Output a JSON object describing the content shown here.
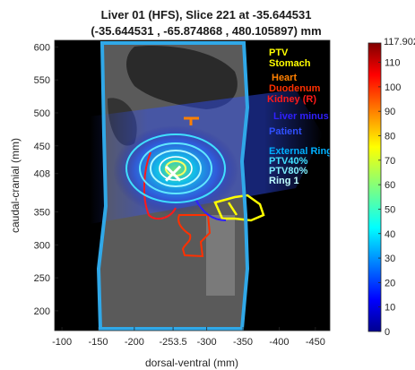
{
  "chart_data": {
    "type": "heatmap",
    "title": "Liver 01 (HFS), Slice 221 at -35.644531",
    "subtitle": "(-35.644531 , -65.874868 , 480.105897) mm",
    "xlabel": "dorsal-ventral (mm)",
    "ylabel": "caudal-cranial (mm)",
    "xlim": [
      -90,
      -470
    ],
    "ylim": [
      170,
      610
    ],
    "x_ticks": [
      {
        "value": -100,
        "label": "-100"
      },
      {
        "value": -150,
        "label": "-150"
      },
      {
        "value": -200,
        "label": "-200"
      },
      {
        "value": -253.5,
        "label": "-253.5"
      },
      {
        "value": -300,
        "label": "-300"
      },
      {
        "value": -350,
        "label": "-350"
      },
      {
        "value": -400,
        "label": "-400"
      },
      {
        "value": -450,
        "label": "-450"
      }
    ],
    "y_ticks": [
      {
        "value": 200,
        "label": "200"
      },
      {
        "value": 250,
        "label": "250"
      },
      {
        "value": 300,
        "label": "300"
      },
      {
        "value": 350,
        "label": "350"
      },
      {
        "value": 408,
        "label": "408"
      },
      {
        "value": 450,
        "label": "450"
      },
      {
        "value": 500,
        "label": "500"
      },
      {
        "value": 550,
        "label": "550"
      },
      {
        "value": 600,
        "label": "600"
      }
    ],
    "crosshair": {
      "x": -253.5,
      "y": 408
    },
    "colorbar": {
      "min": 0,
      "max": 117.902,
      "max_label": "117.902",
      "ticks": [
        {
          "value": 0,
          "label": "0"
        },
        {
          "value": 10,
          "label": "10"
        },
        {
          "value": 20,
          "label": "20"
        },
        {
          "value": 30,
          "label": "30"
        },
        {
          "value": 40,
          "label": "40"
        },
        {
          "value": 50,
          "label": "50"
        },
        {
          "value": 60,
          "label": "60"
        },
        {
          "value": 70,
          "label": "70"
        },
        {
          "value": 80,
          "label": "80"
        },
        {
          "value": 90,
          "label": "90"
        },
        {
          "value": 100,
          "label": "100"
        },
        {
          "value": 110,
          "label": "110"
        }
      ]
    },
    "structures": [
      {
        "name": "PTV",
        "color": "#ffff00"
      },
      {
        "name": "Stomach",
        "color": "#ffff00"
      },
      {
        "name": "Heart",
        "color": "#ff8000"
      },
      {
        "name": "Duodenum",
        "color": "#ff3000"
      },
      {
        "name": "Kidney (R)",
        "color": "#ff1a1a"
      },
      {
        "name": "Liver minus CTV",
        "color": "#3020ff"
      },
      {
        "name": "Patient",
        "color": "#3050ff"
      },
      {
        "name": "External Ring",
        "color": "#00b0ff"
      },
      {
        "name": "PTV40%",
        "color": "#40e0ff"
      },
      {
        "name": "PTV80%",
        "color": "#80f0ff"
      },
      {
        "name": "Ring 1",
        "color": "#c0ffff"
      }
    ]
  }
}
